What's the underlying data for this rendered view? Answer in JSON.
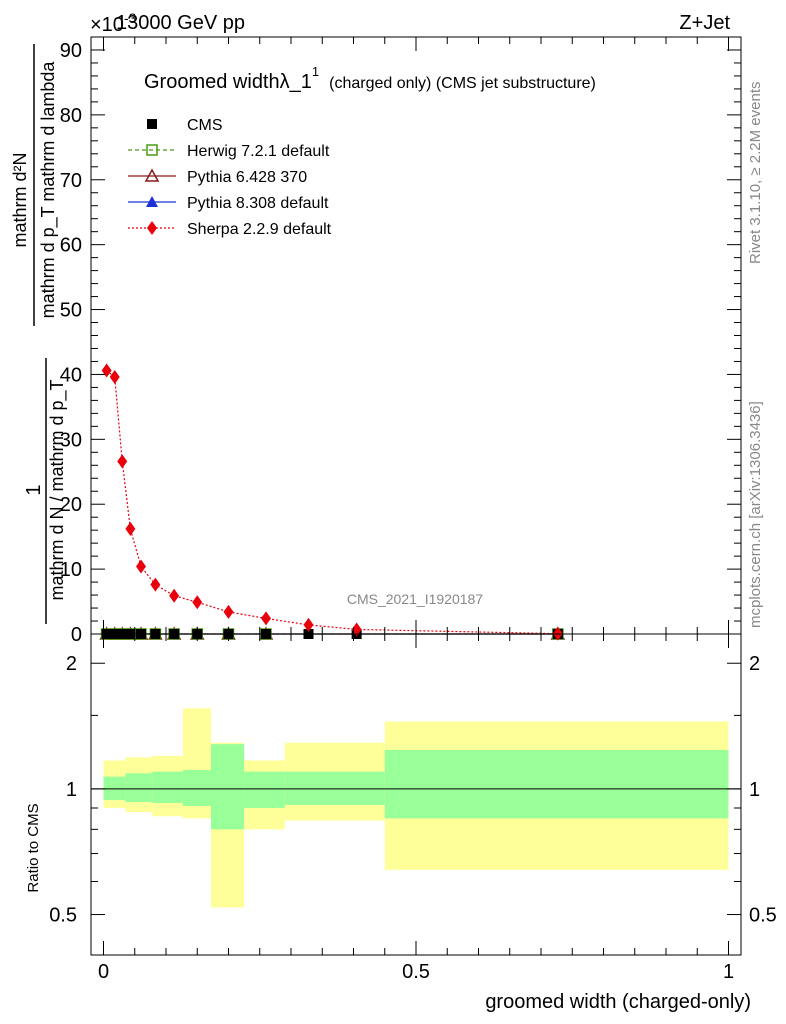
{
  "header": {
    "energy": "13000 GeV pp",
    "process": "Z+Jet",
    "exponent": "×10",
    "exponent_power": "-3"
  },
  "side": {
    "rivet": "Rivet 3.1.10, ≥ 2.2M events",
    "mcplots": "mcplots.cern.ch [arXiv:1306.3436]"
  },
  "watermark": "CMS_2021_I1920187",
  "chart_data": [
    {
      "type": "line",
      "title": "Groomed widthλ_1",
      "title_sup": "1",
      "title_suffix": "(charged only) (CMS jet substructure)",
      "ylabel_numerator": "mathrm d²N",
      "ylabel_denominator": "mathrm d p_T mathrm d lambda",
      "ylabel_prefix_numerator": "1",
      "ylabel_prefix_denominator": "mathrm d N / mathrm d p_T",
      "ylim": [
        0,
        92
      ],
      "xlim": [
        -0.02,
        1.02
      ],
      "yticks": [
        0,
        10,
        20,
        30,
        40,
        50,
        60,
        70,
        80,
        90
      ],
      "legend": [
        "CMS",
        "Herwig 7.2.1 default",
        "Pythia 6.428 370",
        "Pythia 8.308 default",
        "Sherpa 2.2.9 default"
      ],
      "series": [
        {
          "name": "Sherpa 2.2.9 default",
          "color": "#e8000b",
          "x": [
            0.005,
            0.018,
            0.03,
            0.043,
            0.06,
            0.083,
            0.113,
            0.15,
            0.2,
            0.26,
            0.328,
            0.405,
            0.727
          ],
          "y": [
            40.6,
            39.6,
            26.6,
            16.2,
            10.4,
            7.6,
            5.9,
            4.9,
            3.4,
            2.4,
            1.4,
            0.7,
            0.05
          ]
        },
        {
          "name": "CMS",
          "color": "#000000",
          "x": [
            0.005,
            0.018,
            0.03,
            0.043,
            0.06,
            0.083,
            0.113,
            0.15,
            0.2,
            0.26,
            0.328,
            0.405,
            0.727
          ],
          "y": [
            0,
            0,
            0,
            0,
            0,
            0,
            0,
            0,
            0,
            0,
            0,
            0,
            0
          ]
        },
        {
          "name": "Herwig 7.2.1 default",
          "color": "#4a9a14",
          "x": [
            0.005,
            0.018,
            0.03,
            0.043,
            0.06,
            0.083,
            0.113,
            0.15,
            0.2,
            0.26,
            0.727
          ],
          "y": [
            0,
            0,
            0,
            0,
            0,
            0,
            0,
            0,
            0,
            0,
            0
          ]
        },
        {
          "name": "Pythia 6.428 370",
          "color": "#8b1a1a",
          "x": [
            0.005,
            0.018,
            0.03,
            0.043,
            0.06,
            0.083,
            0.113,
            0.15,
            0.2,
            0.26,
            0.727
          ],
          "y": [
            0,
            0,
            0,
            0,
            0,
            0,
            0,
            0,
            0,
            0,
            0
          ]
        },
        {
          "name": "Pythia 8.308 default",
          "color": "#1f2fd6",
          "x": [
            0.005,
            0.018,
            0.03,
            0.043,
            0.06,
            0.083,
            0.113,
            0.15,
            0.2,
            0.26,
            0.727
          ],
          "y": [
            0,
            0,
            0,
            0,
            0,
            0,
            0,
            0,
            0,
            0,
            0
          ]
        }
      ]
    },
    {
      "type": "area",
      "ylabel": "Ratio to CMS",
      "xlabel": "groomed width (charged-only)",
      "ylim": [
        0.4,
        2.35
      ],
      "xlim": [
        -0.02,
        1.02
      ],
      "log_y": true,
      "yticks": [
        0.5,
        1,
        2
      ],
      "xticks": [
        0,
        0.5,
        1
      ],
      "bands": {
        "edges": [
          0,
          0.035,
          0.078,
          0.127,
          0.172,
          0.225,
          0.29,
          0.45,
          1.0
        ],
        "inner_lo": [
          0.94,
          0.93,
          0.925,
          0.91,
          0.8,
          0.9,
          0.915,
          0.85
        ],
        "inner_hi": [
          1.07,
          1.09,
          1.1,
          1.11,
          1.28,
          1.1,
          1.1,
          1.24
        ],
        "outer_lo": [
          0.9,
          0.88,
          0.86,
          0.85,
          0.52,
          0.8,
          0.84,
          0.64
        ],
        "outer_hi": [
          1.17,
          1.19,
          1.2,
          1.56,
          1.29,
          1.17,
          1.29,
          1.45
        ],
        "inner_color": "#99ff99",
        "outer_color": "#ffff99"
      },
      "reference": 1
    }
  ]
}
